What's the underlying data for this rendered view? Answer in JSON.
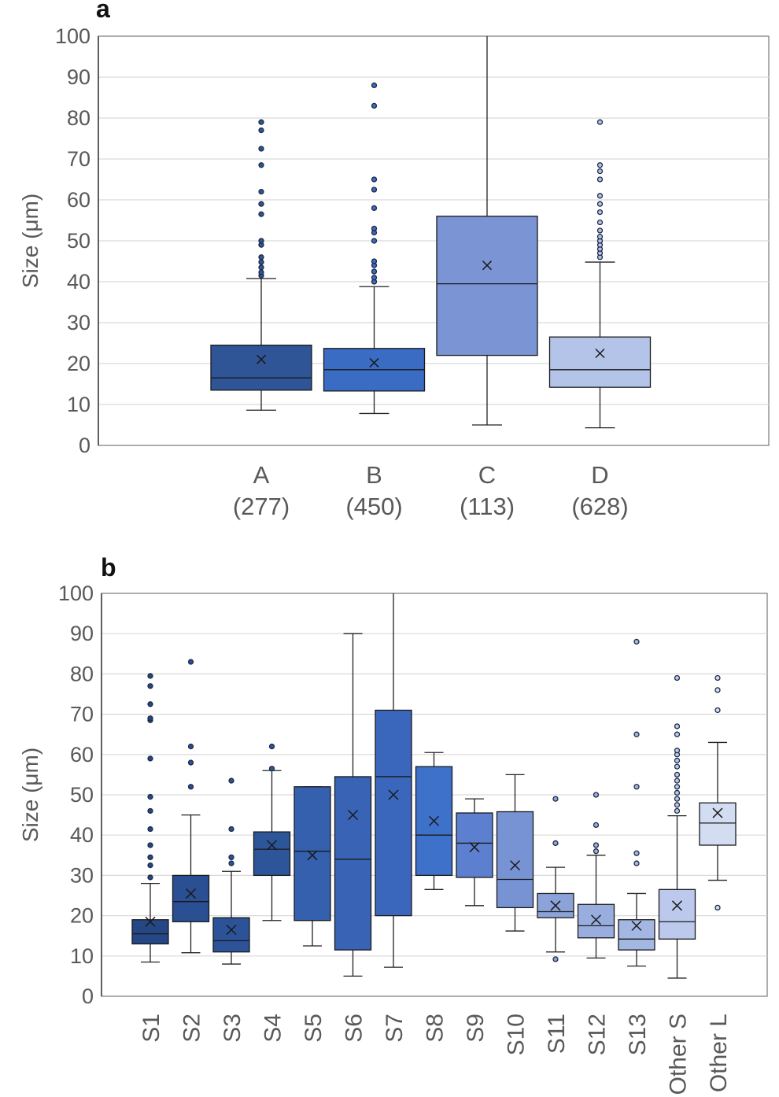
{
  "panels": [
    {
      "panel_label": "a",
      "chart_data": {
        "type": "box",
        "ylabel": "Size (μm)",
        "ylim": [
          0,
          100
        ],
        "yticks": [
          0,
          10,
          20,
          30,
          40,
          50,
          60,
          70,
          80,
          90,
          100
        ],
        "grid": true,
        "categories": [
          "A",
          "B",
          "C",
          "D"
        ],
        "category_counts": [
          "(277)",
          "(450)",
          "(113)",
          "(628)"
        ],
        "boxes": [
          {
            "category": "A",
            "color": "#2F5597",
            "whisker_low": 8.6,
            "q1": 13.5,
            "median": 16.5,
            "q3": 24.5,
            "whisker_high": 40.8,
            "mean": 21.0,
            "outliers": [
              41.5,
              42.3,
              43.5,
              44.8,
              46.0,
              49.0,
              50.0,
              56.5,
              59.0,
              62.0,
              68.5,
              72.5,
              77.0,
              79.0
            ]
          },
          {
            "category": "B",
            "color": "#3A6CC4",
            "whisker_low": 7.8,
            "q1": 13.3,
            "median": 18.5,
            "q3": 23.7,
            "whisker_high": 38.8,
            "mean": 20.2,
            "outliers": [
              40.0,
              41.0,
              42.5,
              44.0,
              45.0,
              50.0,
              52.0,
              53.0,
              58.0,
              62.5,
              65.0,
              83.0,
              88.0
            ]
          },
          {
            "category": "C",
            "color": "#7A94D4",
            "whisker_low": 5.0,
            "q1": 22.0,
            "median": 39.5,
            "q3": 56.0,
            "whisker_high": 100,
            "mean": 44.0,
            "outliers": []
          },
          {
            "category": "D",
            "color": "#B4C3E8",
            "whisker_low": 4.3,
            "q1": 14.2,
            "median": 18.5,
            "q3": 26.5,
            "whisker_high": 44.8,
            "mean": 22.5,
            "outliers": [
              46.0,
              47.0,
              48.0,
              49.0,
              50.0,
              51.0,
              52.5,
              54.5,
              57.0,
              59.0,
              61.0,
              65.0,
              67.0,
              68.5,
              79.0
            ]
          }
        ]
      }
    },
    {
      "panel_label": "b",
      "chart_data": {
        "type": "box",
        "ylabel": "Size (μm)",
        "ylim": [
          0,
          100
        ],
        "yticks": [
          0,
          10,
          20,
          30,
          40,
          50,
          60,
          70,
          80,
          90,
          100
        ],
        "grid": true,
        "categories": [
          "S1",
          "S2",
          "S3",
          "S4",
          "S5",
          "S6",
          "S7",
          "S8",
          "S9",
          "S10",
          "S11",
          "S12",
          "S13",
          "Other S",
          "Other L"
        ],
        "boxes": [
          {
            "category": "S1",
            "color": "#254785",
            "whisker_low": 8.5,
            "q1": 13.0,
            "median": 15.5,
            "q3": 19.0,
            "whisker_high": 28.0,
            "mean": 18.5,
            "outliers": [
              29.5,
              32.5,
              34.5,
              37.5,
              41.5,
              46.0,
              49.5,
              59.0,
              68.5,
              69.0,
              72.5,
              77.0,
              79.5
            ]
          },
          {
            "category": "S2",
            "color": "#2A4F92",
            "whisker_low": 10.8,
            "q1": 18.5,
            "median": 23.5,
            "q3": 30.0,
            "whisker_high": 45.0,
            "mean": 25.5,
            "outliers": [
              52.0,
              58.0,
              62.0,
              83.0
            ]
          },
          {
            "category": "S3",
            "color": "#2C5298",
            "whisker_low": 8.0,
            "q1": 11.0,
            "median": 13.8,
            "q3": 19.5,
            "whisker_high": 31.0,
            "mean": 16.5,
            "outliers": [
              33.0,
              34.5,
              41.5,
              53.5
            ]
          },
          {
            "category": "S4",
            "color": "#2D5599",
            "whisker_low": 18.8,
            "q1": 30.0,
            "median": 36.5,
            "q3": 40.8,
            "whisker_high": 56.0,
            "mean": 37.5,
            "outliers": [
              56.5,
              62.0
            ]
          },
          {
            "category": "S5",
            "color": "#3560AE",
            "whisker_low": 12.5,
            "q1": 18.8,
            "median": 36.0,
            "q3": 52.0,
            "whisker_high": 52.0,
            "mean": 35.0,
            "outliers": []
          },
          {
            "category": "S6",
            "color": "#3964B5",
            "whisker_low": 5.0,
            "q1": 11.5,
            "median": 34.0,
            "q3": 54.5,
            "whisker_high": 90.0,
            "mean": 45.0,
            "outliers": []
          },
          {
            "category": "S7",
            "color": "#3A67BC",
            "whisker_low": 7.2,
            "q1": 20.0,
            "median": 54.5,
            "q3": 71.0,
            "whisker_high": 100,
            "mean": 50.0,
            "outliers": []
          },
          {
            "category": "S8",
            "color": "#3E71CA",
            "whisker_low": 26.5,
            "q1": 30.0,
            "median": 40.0,
            "q3": 57.0,
            "whisker_high": 60.5,
            "mean": 43.5,
            "outliers": []
          },
          {
            "category": "S9",
            "color": "#5C80CF",
            "whisker_low": 22.5,
            "q1": 29.5,
            "median": 38.0,
            "q3": 45.5,
            "whisker_high": 49.0,
            "mean": 37.0,
            "outliers": []
          },
          {
            "category": "S10",
            "color": "#7893D4",
            "whisker_low": 16.2,
            "q1": 22.0,
            "median": 29.0,
            "q3": 45.8,
            "whisker_high": 55.0,
            "mean": 32.5,
            "outliers": []
          },
          {
            "category": "S11",
            "color": "#8CA3DA",
            "whisker_low": 11.0,
            "q1": 19.5,
            "median": 21.0,
            "q3": 25.5,
            "whisker_high": 32.0,
            "mean": 22.5,
            "outliers": [
              9.2,
              38.0,
              49.0
            ]
          },
          {
            "category": "S12",
            "color": "#99AEDF",
            "whisker_low": 9.5,
            "q1": 14.5,
            "median": 17.5,
            "q3": 22.8,
            "whisker_high": 35.0,
            "mean": 19.0,
            "outliers": [
              36.0,
              37.5,
              42.5,
              50.0
            ]
          },
          {
            "category": "S13",
            "color": "#A4B6E2",
            "whisker_low": 7.5,
            "q1": 11.5,
            "median": 14.2,
            "q3": 19.0,
            "whisker_high": 25.5,
            "mean": 17.5,
            "outliers": [
              33.0,
              35.5,
              52.0,
              65.0,
              88.0
            ]
          },
          {
            "category": "Other S",
            "color": "#BCC9EC",
            "whisker_low": 4.5,
            "q1": 14.2,
            "median": 18.5,
            "q3": 26.5,
            "whisker_high": 44.8,
            "mean": 22.5,
            "outliers": [
              46.0,
              47.5,
              49.0,
              50.5,
              52.0,
              53.5,
              55.0,
              57.0,
              58.5,
              60.0,
              61.0,
              65.0,
              67.0,
              79.0
            ]
          },
          {
            "category": "Other L",
            "color": "#D3DDF2",
            "whisker_low": 28.8,
            "q1": 37.5,
            "median": 43.0,
            "q3": 48.0,
            "whisker_high": 63.0,
            "mean": 45.5,
            "outliers": [
              22.0,
              71.0,
              76.0,
              79.0
            ]
          }
        ]
      }
    }
  ]
}
